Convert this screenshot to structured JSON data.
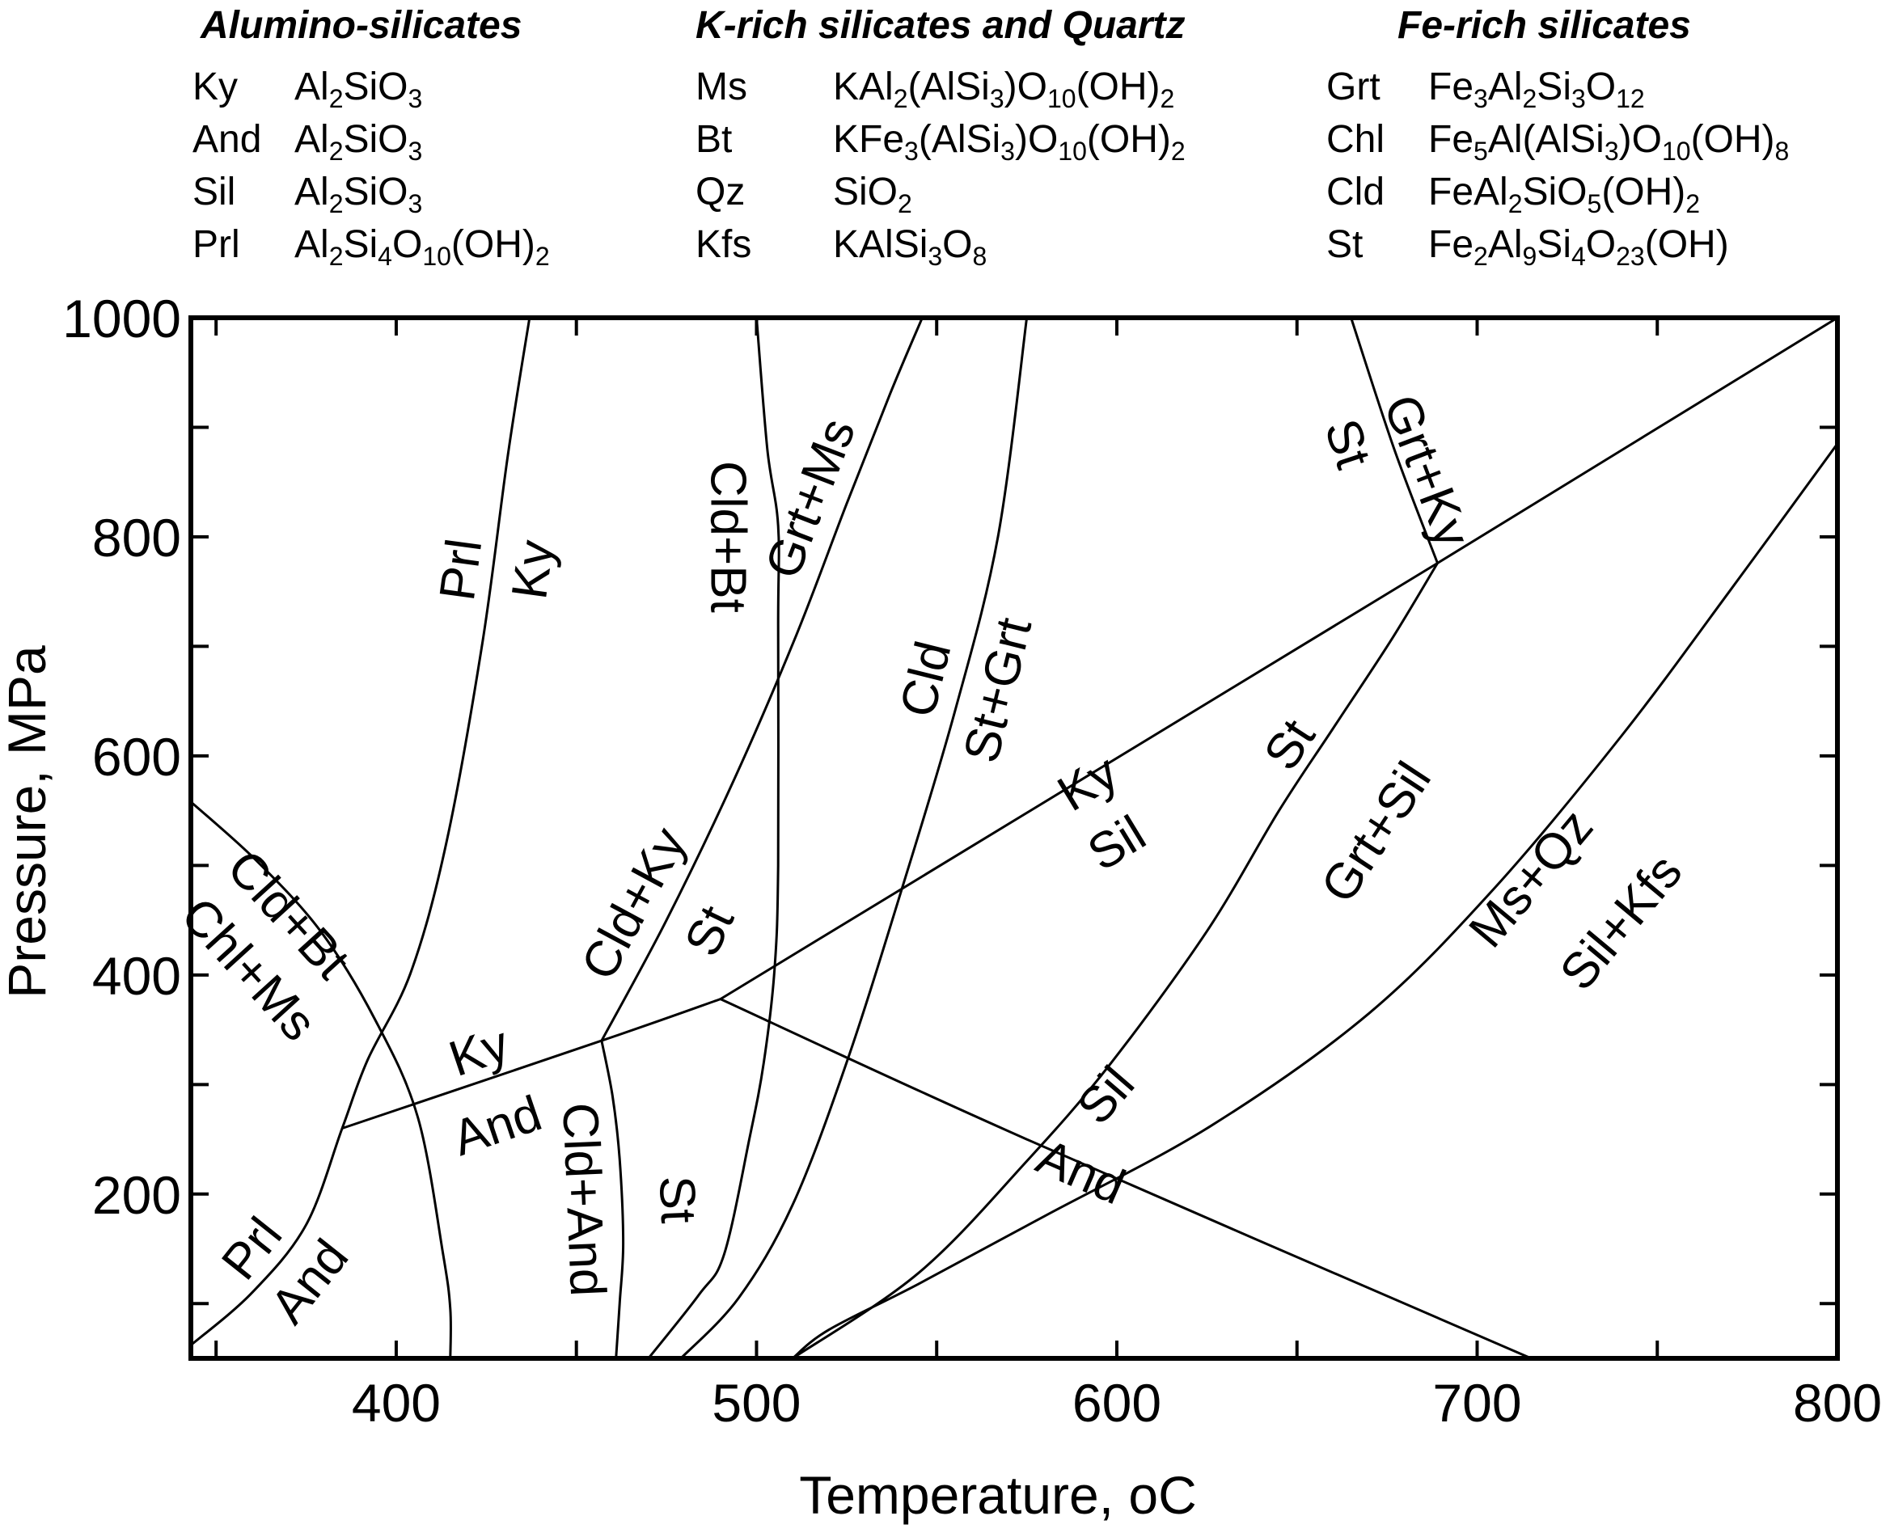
{
  "legend": {
    "columns": [
      {
        "title": "Alumino-silicates",
        "items": [
          {
            "abbr": "Ky",
            "formula": [
              {
                "t": "Al"
              },
              {
                "t": "2",
                "sub": true
              },
              {
                "t": "SiO"
              },
              {
                "t": "3",
                "sub": true
              }
            ]
          },
          {
            "abbr": "And",
            "formula": [
              {
                "t": "Al"
              },
              {
                "t": "2",
                "sub": true
              },
              {
                "t": "SiO"
              },
              {
                "t": "3",
                "sub": true
              }
            ]
          },
          {
            "abbr": "Sil",
            "formula": [
              {
                "t": "Al"
              },
              {
                "t": "2",
                "sub": true
              },
              {
                "t": "SiO"
              },
              {
                "t": "3",
                "sub": true
              }
            ]
          },
          {
            "abbr": "Prl",
            "formula": [
              {
                "t": "Al"
              },
              {
                "t": "2",
                "sub": true
              },
              {
                "t": "Si"
              },
              {
                "t": "4",
                "sub": true
              },
              {
                "t": "O"
              },
              {
                "t": "10",
                "sub": true
              },
              {
                "t": "(OH)"
              },
              {
                "t": "2",
                "sub": true
              }
            ]
          }
        ]
      },
      {
        "title": "K-rich silicates and Quartz",
        "items": [
          {
            "abbr": "Ms",
            "formula": [
              {
                "t": "KAl"
              },
              {
                "t": "2",
                "sub": true
              },
              {
                "t": "(AlSi"
              },
              {
                "t": "3",
                "sub": true
              },
              {
                "t": ")O"
              },
              {
                "t": "10",
                "sub": true
              },
              {
                "t": "(OH)"
              },
              {
                "t": "2",
                "sub": true
              }
            ]
          },
          {
            "abbr": "Bt",
            "formula": [
              {
                "t": "KFe"
              },
              {
                "t": "3",
                "sub": true
              },
              {
                "t": "(AlSi"
              },
              {
                "t": "3",
                "sub": true
              },
              {
                "t": ")O"
              },
              {
                "t": "10",
                "sub": true
              },
              {
                "t": "(OH)"
              },
              {
                "t": "2",
                "sub": true
              }
            ]
          },
          {
            "abbr": "Qz",
            "formula": [
              {
                "t": "SiO"
              },
              {
                "t": "2",
                "sub": true
              }
            ]
          },
          {
            "abbr": "Kfs",
            "formula": [
              {
                "t": "KAlSi"
              },
              {
                "t": "3",
                "sub": true
              },
              {
                "t": "O"
              },
              {
                "t": "8",
                "sub": true
              }
            ]
          }
        ]
      },
      {
        "title": "Fe-rich silicates",
        "items": [
          {
            "abbr": "Grt",
            "formula": [
              {
                "t": "Fe"
              },
              {
                "t": "3",
                "sub": true
              },
              {
                "t": "Al"
              },
              {
                "t": "2",
                "sub": true
              },
              {
                "t": "Si"
              },
              {
                "t": "3",
                "sub": true
              },
              {
                "t": "O"
              },
              {
                "t": "12",
                "sub": true
              }
            ]
          },
          {
            "abbr": "Chl",
            "formula": [
              {
                "t": "Fe"
              },
              {
                "t": "5",
                "sub": true
              },
              {
                "t": "Al(AlSi"
              },
              {
                "t": "3",
                "sub": true
              },
              {
                "t": ")O"
              },
              {
                "t": "10",
                "sub": true
              },
              {
                "t": "(OH)"
              },
              {
                "t": "8",
                "sub": true
              }
            ]
          },
          {
            "abbr": "Cld",
            "formula": [
              {
                "t": "FeAl"
              },
              {
                "t": "2",
                "sub": true
              },
              {
                "t": "SiO"
              },
              {
                "t": "5",
                "sub": true
              },
              {
                "t": "(OH)"
              },
              {
                "t": "2",
                "sub": true
              }
            ]
          },
          {
            "abbr": "St",
            "formula": [
              {
                "t": "Fe"
              },
              {
                "t": "2",
                "sub": true
              },
              {
                "t": "Al"
              },
              {
                "t": "9",
                "sub": true
              },
              {
                "t": "Si"
              },
              {
                "t": "4",
                "sub": true
              },
              {
                "t": "O"
              },
              {
                "t": "23",
                "sub": true
              },
              {
                "t": "(OH)"
              }
            ]
          }
        ]
      }
    ]
  },
  "chart_data": {
    "type": "line",
    "xlabel": "Temperature, oC",
    "ylabel": "Pressure, MPa",
    "xlim": [
      343,
      800
    ],
    "ylim": [
      50,
      1000
    ],
    "xticks": [
      400,
      500,
      600,
      700,
      800
    ],
    "yticks": [
      200,
      400,
      600,
      800,
      1000
    ],
    "x_minor_ticks": [
      350,
      400,
      450,
      500,
      550,
      600,
      650,
      700,
      750,
      800
    ],
    "y_minor_ticks": [
      100,
      200,
      300,
      400,
      500,
      600,
      700,
      800,
      900,
      1000
    ],
    "grid": false,
    "line_color": "#000000",
    "series": [
      {
        "points": [
          [
            343,
            62
          ],
          [
            360,
            110
          ],
          [
            375,
            172
          ],
          [
            385,
            260
          ],
          [
            392,
            322
          ],
          [
            404,
            402
          ],
          [
            414,
            522
          ],
          [
            424,
            705
          ],
          [
            431,
            875
          ],
          [
            437,
            1000
          ]
        ]
      },
      {
        "points": [
          [
            385,
            260
          ],
          [
            457,
            340
          ],
          [
            490,
            378
          ]
        ]
      },
      {
        "points": [
          [
            490,
            378
          ],
          [
            689,
            776
          ]
        ]
      },
      {
        "points": [
          [
            689,
            776
          ],
          [
            800,
            1000
          ]
        ]
      },
      {
        "points": [
          [
            490,
            378
          ],
          [
            575,
            250
          ],
          [
            715,
            50
          ]
        ]
      },
      {
        "points": [
          [
            343,
            558
          ],
          [
            361,
            505
          ],
          [
            379,
            440
          ],
          [
            394,
            360
          ],
          [
            406,
            270
          ],
          [
            413,
            145
          ],
          [
            415,
            95
          ],
          [
            415,
            50
          ]
        ]
      },
      {
        "points": [
          [
            457,
            340
          ],
          [
            475,
            450
          ],
          [
            494,
            580
          ],
          [
            511,
            710
          ],
          [
            525,
            830
          ],
          [
            537,
            930
          ],
          [
            546,
            1000
          ]
        ]
      },
      {
        "points": [
          [
            457,
            340
          ],
          [
            460,
            290
          ],
          [
            462,
            232
          ],
          [
            463,
            155
          ],
          [
            462,
            100
          ],
          [
            461,
            50
          ]
        ]
      },
      {
        "points": [
          [
            500,
            1000
          ],
          [
            503,
            880
          ],
          [
            506,
            810
          ],
          [
            506,
            720
          ],
          [
            506,
            500
          ],
          [
            505,
            405
          ],
          [
            502,
            320
          ],
          [
            498,
            250
          ],
          [
            491,
            145
          ],
          [
            484,
            108
          ],
          [
            470,
            50
          ]
        ]
      },
      {
        "points": [
          [
            479,
            50
          ],
          [
            495,
            105
          ],
          [
            510,
            190
          ],
          [
            525,
            320
          ],
          [
            540,
            475
          ],
          [
            555,
            640
          ],
          [
            567,
            800
          ],
          [
            575,
            1000
          ]
        ]
      },
      {
        "points": [
          [
            665,
            1000
          ],
          [
            677,
            880
          ],
          [
            689,
            776
          ]
        ]
      },
      {
        "points": [
          [
            689,
            776
          ],
          [
            676,
            705
          ],
          [
            660,
            625
          ],
          [
            645,
            550
          ],
          [
            625,
            440
          ],
          [
            598,
            318
          ],
          [
            575,
            230
          ],
          [
            545,
            128
          ],
          [
            510,
            50
          ]
        ]
      },
      {
        "points": [
          [
            800,
            885
          ],
          [
            770,
            750
          ],
          [
            740,
            618
          ],
          [
            705,
            480
          ],
          [
            670,
            365
          ],
          [
            626,
            262
          ],
          [
            580,
            180
          ],
          [
            545,
            118
          ],
          [
            520,
            76
          ],
          [
            510,
            50
          ]
        ]
      }
    ],
    "field_labels": [
      {
        "text": "Cld+Bt",
        "x": 492,
        "y": 800
      },
      {
        "text": "Grt+Ms",
        "x": 515,
        "y": 835
      },
      {
        "text": "Prl",
        "x": 418,
        "y": 770
      },
      {
        "text": "Ky",
        "x": 438,
        "y": 770
      },
      {
        "text": "Cld",
        "x": 547,
        "y": 670
      },
      {
        "text": "St+Grt",
        "x": 567,
        "y": 660
      },
      {
        "text": "St",
        "x": 664,
        "y": 885
      },
      {
        "text": "Grt+Ky",
        "x": 686,
        "y": 860
      },
      {
        "text": "Ky",
        "x": 592,
        "y": 575
      },
      {
        "text": "Sil",
        "x": 600,
        "y": 520
      },
      {
        "text": "St",
        "x": 648,
        "y": 610
      },
      {
        "text": "Grt+Sil",
        "x": 672,
        "y": 530
      },
      {
        "text": "Cld+Ky",
        "x": 466,
        "y": 465
      },
      {
        "text": "St",
        "x": 487,
        "y": 440
      },
      {
        "text": "Ms+Qz",
        "x": 715,
        "y": 488
      },
      {
        "text": "Sil+Kfs",
        "x": 740,
        "y": 448
      },
      {
        "text": "Cld+Bt",
        "x": 370,
        "y": 455
      },
      {
        "text": "Chl+Ms",
        "x": 359,
        "y": 405
      },
      {
        "text": "Ky",
        "x": 423,
        "y": 330
      },
      {
        "text": "And",
        "x": 428,
        "y": 262
      },
      {
        "text": "Cld+And",
        "x": 452,
        "y": 195
      },
      {
        "text": "St",
        "x": 478,
        "y": 195
      },
      {
        "text": "Sil",
        "x": 597,
        "y": 290
      },
      {
        "text": "And",
        "x": 590,
        "y": 220
      },
      {
        "text": "Prl",
        "x": 360,
        "y": 150
      },
      {
        "text": "And",
        "x": 376,
        "y": 120
      }
    ]
  }
}
